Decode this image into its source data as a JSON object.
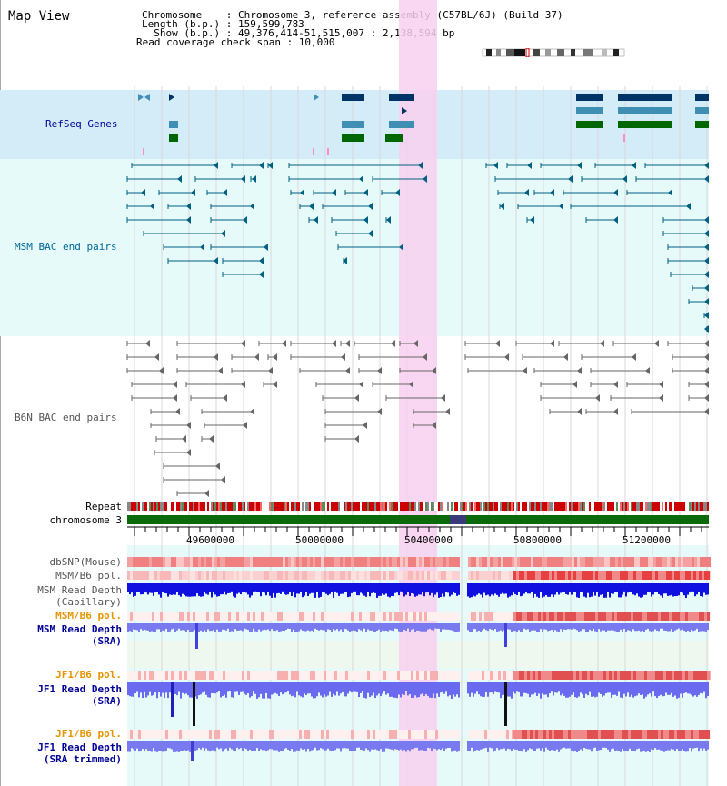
{
  "app": {
    "title": "Map View"
  },
  "header": {
    "line1": "Chromosome    : Chromosome 3, reference assembly (C57BL/6J) (Build 37)",
    "line2": "Length (b.p.) : 159,599,783",
    "line3": "  Show (b.p.) : 49,376,414-51,515,007 : 2,138,594 bp",
    "line4": "Read coverage check span : 10,000"
  },
  "tracks": {
    "refseq": "RefSeq Genes",
    "msm_bac": "MSM BAC end pairs",
    "b6n_bac": "B6N BAC end pairs",
    "repeat": "Repeat",
    "chromosome": "chromosome 3",
    "dbsnp": "dbSNP(Mouse)",
    "msm_pol1": "MSM/B6 pol.",
    "msm_depth_cap_1": "MSM Read Depth",
    "msm_depth_cap_2": "(Capillary)",
    "msm_pol2": "MSM/B6 pol.",
    "msm_depth_sra_1": "MSM Read Depth",
    "msm_depth_sra_2": "(SRA)",
    "jf1_pol1": "JF1/B6 pol.",
    "jf1_depth_sra_1": "JF1 Read Depth",
    "jf1_depth_sra_2": "(SRA)",
    "jf1_pol2": "JF1/B6 pol.",
    "jf1_depth_trim_1": "JF1 Read Depth",
    "jf1_depth_trim_2": "(SRA trimmed)"
  },
  "axis": {
    "ticks": [
      "49600000",
      "50000000",
      "50400000",
      "50800000",
      "51200000"
    ]
  },
  "colors": {
    "refseq_label": "#000099",
    "msm_label": "#006699",
    "gray_label": "#555555",
    "orange_label": "#e69500",
    "highlight": "#f8d0f0",
    "refseq_bg": "#d4ecf8",
    "msm_bg": "#e6fafa",
    "jf1_bg": "#eafafa"
  }
}
